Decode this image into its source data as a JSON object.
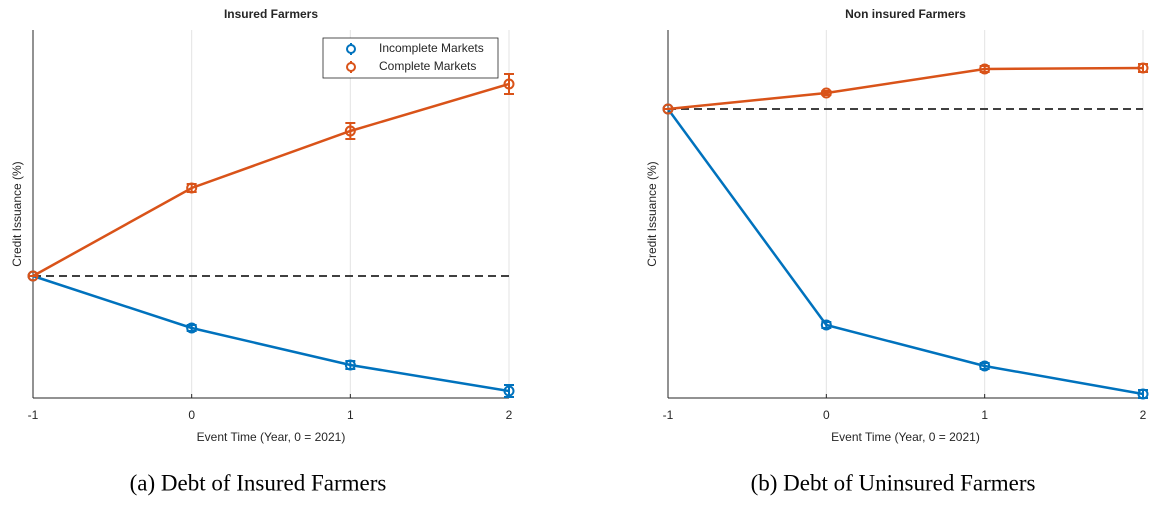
{
  "chart_data": [
    {
      "type": "line",
      "title": "Insured Farmers",
      "xlabel": "Event Time (Year, 0 = 2021)",
      "ylabel": "Credit Issuance (%)",
      "caption": "(a) Debt of Insured Farmers",
      "x": [
        -1,
        0,
        1,
        2
      ],
      "xlim": [
        -1,
        2
      ],
      "xticks": [
        -1,
        0,
        1,
        2
      ],
      "ylim": [
        -1.22,
        2.46
      ],
      "grid": true,
      "hline": 0,
      "legend": "upper right",
      "series": [
        {
          "name": "Incomplete Markets",
          "color": "#0072bd",
          "values": [
            0,
            -0.52,
            -0.89,
            -1.15
          ],
          "errors": [
            0,
            0.03,
            0.04,
            0.06
          ]
        },
        {
          "name": "Complete Markets",
          "color": "#d95319",
          "values": [
            0,
            0.88,
            1.45,
            1.92
          ],
          "errors": [
            0,
            0.04,
            0.08,
            0.1
          ]
        }
      ]
    },
    {
      "type": "line",
      "title": "Non insured Farmers",
      "xlabel": "Event Time (Year, 0 = 2021)",
      "ylabel": "Credit Issuance (%)",
      "caption": "(b) Debt of Uninsured Farmers",
      "x": [
        -1,
        0,
        1,
        2
      ],
      "xlim": [
        -1,
        2
      ],
      "xticks": [
        -1,
        0,
        1,
        2
      ],
      "ylim": [
        -2.89,
        0.79
      ],
      "grid": true,
      "hline": 0,
      "series": [
        {
          "name": "Incomplete Markets",
          "color": "#0072bd",
          "values": [
            0,
            -2.16,
            -2.57,
            -2.85
          ],
          "errors": [
            0,
            0.03,
            0.03,
            0.04
          ]
        },
        {
          "name": "Complete Markets",
          "color": "#d95319",
          "values": [
            0,
            0.16,
            0.4,
            0.41
          ],
          "errors": [
            0,
            0.02,
            0.03,
            0.04
          ]
        }
      ]
    }
  ]
}
